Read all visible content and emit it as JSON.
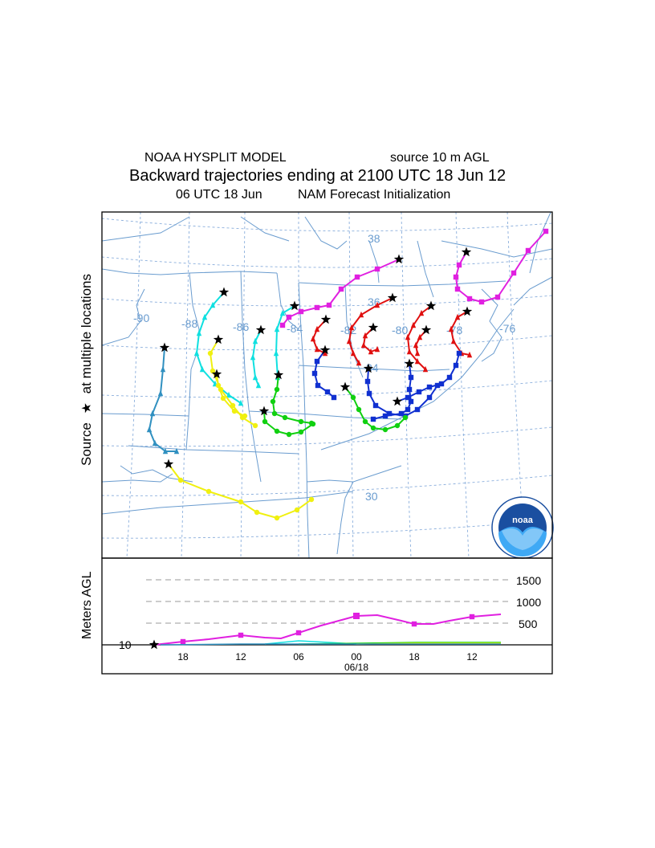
{
  "header": {
    "model": "NOAA HYSPLIT MODEL",
    "source": "source 10 m AGL",
    "title": "Backward trajectories ending at 2100 UTC 18 Jun 12",
    "time": "06 UTC 18 Jun",
    "init": "NAM  Forecast Initialization"
  },
  "side_label": {
    "source": "Source",
    "star": "★",
    "locations": "at multiple locations"
  },
  "map": {
    "longitude_labels": [
      "-90",
      "-88",
      "-86",
      "-84",
      "-82",
      "-80",
      "-78",
      "-76"
    ],
    "latitude_labels": [
      "38",
      "36",
      "34",
      "30"
    ],
    "logo_text": "noaa",
    "colors": {
      "magenta": "#e020e0",
      "red": "#e01010",
      "blue": "#1030d0",
      "green": "#10d010",
      "cyan": "#10e0e0",
      "yellow": "#f0f010",
      "teal": "#3090c0",
      "map_lines": "#6a9ccf",
      "grid": "#8aaedc"
    }
  },
  "height_panel": {
    "ylabel": "Meters AGL",
    "y_ticks": [
      "1500",
      "1000",
      "500"
    ],
    "source_height": "10",
    "x_ticks": [
      "18",
      "12",
      "06",
      "00",
      "18",
      "12"
    ],
    "date_label": "06/18"
  }
}
